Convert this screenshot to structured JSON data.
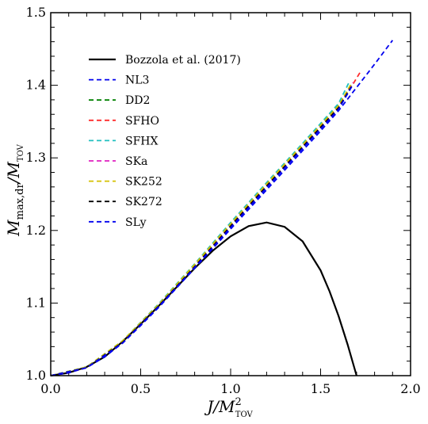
{
  "chart_data": {
    "type": "line",
    "xlabel": {
      "main": "J/M",
      "sup": "2",
      "sub": "TOV"
    },
    "ylabel": {
      "main": "M",
      "sub1": "max,dr",
      "mid": "/M",
      "sub2": "TOV"
    },
    "xlim": [
      0.0,
      2.0
    ],
    "ylim": [
      1.0,
      1.5
    ],
    "xticks": [
      0.0,
      0.5,
      1.0,
      1.5,
      2.0
    ],
    "yticks": [
      1.0,
      1.1,
      1.2,
      1.3,
      1.4,
      1.5
    ],
    "xtick_labels": [
      "0.0",
      "0.5",
      "1.0",
      "1.5",
      "2.0"
    ],
    "ytick_labels": [
      "1.0",
      "1.1",
      "1.2",
      "1.3",
      "1.4",
      "1.5"
    ],
    "legend_position": "upper-left",
    "series": [
      {
        "name": "Bozzola et al. (2017)",
        "color": "#000000",
        "style": "solid",
        "x": [
          0.0,
          0.1,
          0.2,
          0.3,
          0.4,
          0.5,
          0.6,
          0.7,
          0.8,
          0.9,
          1.0,
          1.1,
          1.2,
          1.3,
          1.4,
          1.5,
          1.55,
          1.6,
          1.65,
          1.7
        ],
        "y": [
          1.0,
          1.004,
          1.012,
          1.026,
          1.047,
          1.071,
          1.096,
          1.122,
          1.148,
          1.172,
          1.192,
          1.206,
          1.211,
          1.205,
          1.185,
          1.145,
          1.116,
          1.082,
          1.043,
          1.0
        ]
      },
      {
        "name": "NL3",
        "color": "#0000ee",
        "style": "dashed",
        "x": [
          0.0,
          0.1,
          0.2,
          0.3,
          0.4,
          0.5,
          0.6,
          0.7,
          0.8,
          0.9,
          1.0,
          1.1,
          1.2,
          1.3,
          1.4,
          1.5,
          1.6,
          1.7,
          1.8,
          1.9
        ],
        "y": [
          1.0,
          1.004,
          1.011,
          1.026,
          1.045,
          1.069,
          1.094,
          1.121,
          1.148,
          1.175,
          1.202,
          1.229,
          1.256,
          1.283,
          1.31,
          1.337,
          1.365,
          1.397,
          1.429,
          1.462
        ]
      },
      {
        "name": "DD2",
        "color": "#008000",
        "style": "dashed",
        "x": [
          0.0,
          0.2,
          0.4,
          0.6,
          0.8,
          1.0,
          1.2,
          1.4,
          1.6,
          1.67
        ],
        "y": [
          1.0,
          1.012,
          1.048,
          1.098,
          1.153,
          1.21,
          1.265,
          1.319,
          1.373,
          1.4
        ]
      },
      {
        "name": "SFHO",
        "color": "#ff2a2a",
        "style": "dashed",
        "x": [
          0.0,
          0.2,
          0.4,
          0.6,
          0.8,
          1.0,
          1.2,
          1.4,
          1.6,
          1.72
        ],
        "y": [
          1.0,
          1.011,
          1.046,
          1.096,
          1.15,
          1.205,
          1.26,
          1.314,
          1.369,
          1.418
        ]
      },
      {
        "name": "SFHX",
        "color": "#20c0c0",
        "style": "dashed",
        "x": [
          0.0,
          0.2,
          0.4,
          0.6,
          0.8,
          1.0,
          1.2,
          1.4,
          1.6,
          1.66
        ],
        "y": [
          1.0,
          1.012,
          1.048,
          1.099,
          1.154,
          1.211,
          1.266,
          1.32,
          1.375,
          1.405
        ]
      },
      {
        "name": "SKa",
        "color": "#e020c0",
        "style": "dashed",
        "x": [
          0.0,
          0.2,
          0.4,
          0.6,
          0.8,
          1.0,
          1.2,
          1.4,
          1.6,
          1.68
        ],
        "y": [
          1.0,
          1.011,
          1.047,
          1.097,
          1.151,
          1.207,
          1.262,
          1.316,
          1.371,
          1.404
        ]
      },
      {
        "name": "SK252",
        "color": "#d4c000",
        "style": "dashed",
        "x": [
          0.0,
          0.2,
          0.4,
          0.6,
          0.8,
          1.0,
          1.2,
          1.4,
          1.6,
          1.67
        ],
        "y": [
          1.0,
          1.012,
          1.048,
          1.098,
          1.153,
          1.209,
          1.264,
          1.318,
          1.372,
          1.402
        ]
      },
      {
        "name": "SK272",
        "color": "#000000",
        "style": "dashed",
        "x": [
          0.0,
          0.2,
          0.4,
          0.6,
          0.8,
          1.0,
          1.2,
          1.4,
          1.6,
          1.67
        ],
        "y": [
          1.0,
          1.011,
          1.046,
          1.096,
          1.15,
          1.206,
          1.261,
          1.315,
          1.369,
          1.398
        ]
      },
      {
        "name": "SLy",
        "color": "#0000ee",
        "style": "dashed",
        "x": [
          0.0,
          0.2,
          0.4,
          0.6,
          0.8,
          1.0,
          1.2,
          1.4,
          1.6,
          1.68
        ],
        "y": [
          1.0,
          1.011,
          1.045,
          1.095,
          1.149,
          1.204,
          1.259,
          1.313,
          1.367,
          1.401
        ]
      }
    ]
  }
}
